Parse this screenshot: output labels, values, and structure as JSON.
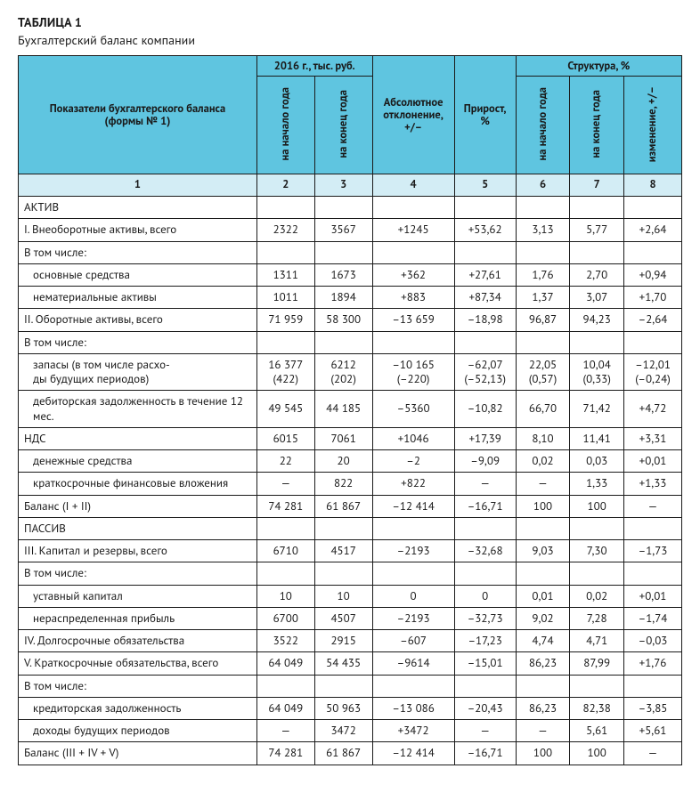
{
  "title_number": "ТАБЛИЦА 1",
  "title_caption": "Бухгалтерский баланс компании",
  "colors": {
    "header_bg": "#5fc5e0",
    "subheader_bg": "#d3edf5",
    "border": "#1a1a1a",
    "text": "#1a1a1a",
    "page_bg": "#ffffff"
  },
  "header": {
    "indicator": "Показатели бухгалтерского баланса\n(формы № 1)",
    "group_year": "2016 г., тыс. руб.",
    "col2": "на начало года",
    "col3": "на конец года",
    "col4": "Абсолютное\nотклонение,\n+/–",
    "col5": "Прирост,\n%",
    "group_struct": "Структура, %",
    "col6": "на начало года",
    "col7": "на конец года",
    "col8": "изменение, +/–"
  },
  "colnums": [
    "1",
    "2",
    "3",
    "4",
    "5",
    "6",
    "7",
    "8"
  ],
  "rows": [
    {
      "label": "АКТИВ",
      "indent": 0,
      "cells": [
        "",
        "",
        "",
        "",
        "",
        "",
        ""
      ]
    },
    {
      "label": "I. Внеоборотные активы, всего",
      "indent": 0,
      "cells": [
        "2322",
        "3567",
        "+1245",
        "+53,62",
        "3,13",
        "5,77",
        "+2,64"
      ]
    },
    {
      "label": "В том числе:",
      "indent": 0,
      "cells": [
        "",
        "",
        "",
        "",
        "",
        "",
        ""
      ]
    },
    {
      "label": "основные средства",
      "indent": 1,
      "cells": [
        "1311",
        "1673",
        "+362",
        "+27,61",
        "1,76",
        "2,70",
        "+0,94"
      ]
    },
    {
      "label": "нематериальные активы",
      "indent": 1,
      "cells": [
        "1011",
        "1894",
        "+883",
        "+87,34",
        "1,37",
        "3,07",
        "+1,70"
      ]
    },
    {
      "label": "II. Оборотные активы, всего",
      "indent": 0,
      "cells": [
        "71 959",
        "58 300",
        "–13 659",
        "–18,98",
        "96,87",
        "94,23",
        "–2,64"
      ]
    },
    {
      "label": "В том числе:",
      "indent": 0,
      "cells": [
        "",
        "",
        "",
        "",
        "",
        "",
        ""
      ]
    },
    {
      "label": "запасы (в том числе расхо-\nды будущих периодов)",
      "indent": 1,
      "cells": [
        "16 377\n(422)",
        "6212\n(202)",
        "–10 165\n(–220)",
        "–62,07\n(–52,13)",
        "22,05\n(0,57)",
        "10,04\n(0,33)",
        "–12,01\n(–0,24)"
      ]
    },
    {
      "label": "дебиторская задолженность в течение 12 мес.",
      "indent": 1,
      "cells": [
        "49 545",
        "44 185",
        "–5360",
        "–10,82",
        "66,70",
        "71,42",
        "+4,72"
      ]
    },
    {
      "label": "НДС",
      "indent": 0,
      "cells": [
        "6015",
        "7061",
        "+1046",
        "+17,39",
        "8,10",
        "11,41",
        "+3,31"
      ]
    },
    {
      "label": "денежные средства",
      "indent": 1,
      "cells": [
        "22",
        "20",
        "–2",
        "–9,09",
        "0,02",
        "0,03",
        "+0,01"
      ]
    },
    {
      "label": "краткосрочные финансовые вложения",
      "indent": 1,
      "cells": [
        "—",
        "822",
        "+822",
        "—",
        "—",
        "1,33",
        "+1,33"
      ]
    },
    {
      "label": "Баланс (I + II)",
      "indent": 0,
      "cells": [
        "74 281",
        "61 867",
        "–12 414",
        "–16,71",
        "100",
        "100",
        "—"
      ]
    },
    {
      "label": "ПАССИВ",
      "indent": 0,
      "cells": [
        "",
        "",
        "",
        "",
        "",
        "",
        ""
      ]
    },
    {
      "label": "III. Капитал и резервы, всего",
      "indent": 0,
      "cells": [
        "6710",
        "4517",
        "–2193",
        "–32,68",
        "9,03",
        "7,30",
        "–1,73"
      ]
    },
    {
      "label": "В том числе:",
      "indent": 0,
      "cells": [
        "",
        "",
        "",
        "",
        "",
        "",
        ""
      ]
    },
    {
      "label": "уставный капитал",
      "indent": 1,
      "cells": [
        "10",
        "10",
        "0",
        "0",
        "0,01",
        "0,02",
        "+0,01"
      ]
    },
    {
      "label": "нераспределенная прибыль",
      "indent": 1,
      "cells": [
        "6700",
        "4507",
        "–2193",
        "–32,73",
        "9,02",
        "7,28",
        "–1,74"
      ]
    },
    {
      "label": "IV. Долгосрочные обязательства",
      "indent": 0,
      "cells": [
        "3522",
        "2915",
        "–607",
        "–17,23",
        "4,74",
        "4,71",
        "–0,03"
      ]
    },
    {
      "label": "V. Краткосрочные обязательства, всего",
      "indent": 0,
      "cells": [
        "64 049",
        "54 435",
        "–9614",
        "–15,01",
        "86,23",
        "87,99",
        "+1,76"
      ]
    },
    {
      "label": "В том числе:",
      "indent": 0,
      "cells": [
        "",
        "",
        "",
        "",
        "",
        "",
        ""
      ]
    },
    {
      "label": "кредиторская задолженность",
      "indent": 1,
      "cells": [
        "64 049",
        "50 963",
        "–13 086",
        "–20,43",
        "86,23",
        "82,38",
        "–3,85"
      ]
    },
    {
      "label": "доходы будущих периодов",
      "indent": 1,
      "cells": [
        "—",
        "3472",
        "+3472",
        "—",
        "—",
        "5,61",
        "+5,61"
      ]
    },
    {
      "label": "Баланс (III + IV + V)",
      "indent": 0,
      "cells": [
        "74 281",
        "61 867",
        "–12 414",
        "–16,71",
        "100",
        "100",
        "—"
      ]
    }
  ]
}
